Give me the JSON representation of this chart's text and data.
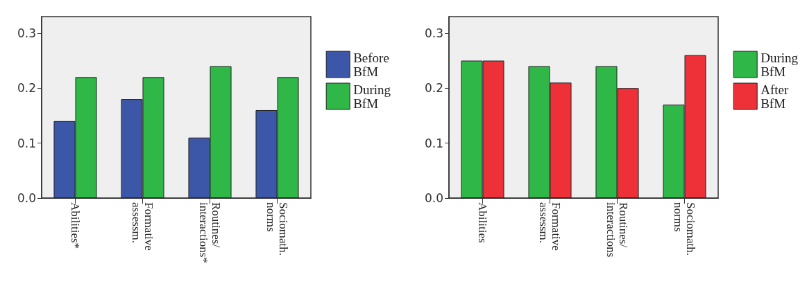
{
  "chart_data": [
    {
      "type": "bar",
      "categories": [
        "Abilities*",
        "Formative\nassessm.",
        "Routines/\ninteractions*",
        "Sociomath.\nnorms"
      ],
      "series": [
        {
          "name": "Before\nBfM",
          "color": "#3c56a8",
          "values": [
            0.14,
            0.18,
            0.11,
            0.16
          ]
        },
        {
          "name": "During\nBfM",
          "color": "#2fb747",
          "values": [
            0.22,
            0.22,
            0.24,
            0.22
          ]
        }
      ],
      "ylim": [
        0,
        0.33
      ],
      "yticks": [
        {
          "value": 0,
          "label": "0.0"
        },
        0.1,
        0.2,
        0.3
      ],
      "grid": false,
      "legend": "right"
    },
    {
      "type": "bar",
      "categories": [
        "Abilities",
        "Formative\nassessm.",
        "Routines/\ninteractions",
        "Sociomath.\nnorms"
      ],
      "series": [
        {
          "name": "During\nBfM",
          "color": "#2fb747",
          "values": [
            0.25,
            0.24,
            0.24,
            0.17
          ]
        },
        {
          "name": "After\nBfM",
          "color": "#ee3039",
          "values": [
            0.25,
            0.21,
            0.2,
            0.26
          ]
        }
      ],
      "ylim": [
        0,
        0.33
      ],
      "yticks": [
        {
          "value": 0,
          "label": "0.0"
        },
        0.1,
        0.2,
        0.3
      ],
      "grid": false,
      "legend": "right"
    }
  ]
}
